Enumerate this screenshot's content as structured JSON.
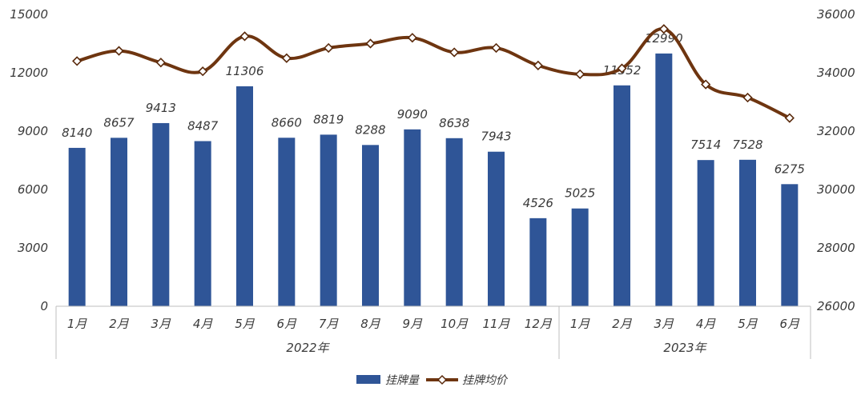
{
  "chart_data": {
    "type": "bar",
    "categories": [
      "1月",
      "2月",
      "3月",
      "4月",
      "5月",
      "6月",
      "7月",
      "8月",
      "9月",
      "10月",
      "11月",
      "12月",
      "1月",
      "2月",
      "3月",
      "4月",
      "5月",
      "6月"
    ],
    "category_groups": [
      {
        "label": "2022年",
        "count": 12
      },
      {
        "label": "2023年",
        "count": 6
      }
    ],
    "series": [
      {
        "name": "挂牌量",
        "type": "bar",
        "axis": "left",
        "color": "#2f5597",
        "values": [
          8140,
          8657,
          9413,
          8487,
          11306,
          8660,
          8819,
          8288,
          9090,
          8638,
          7943,
          4526,
          5025,
          11352,
          12990,
          7514,
          7528,
          6275
        ],
        "labels": [
          "8140",
          "8657",
          "9413",
          "8487",
          "11306",
          "8660",
          "8819",
          "8288",
          "9090",
          "8638",
          "7943",
          "4526",
          "5025",
          "11352",
          "12990",
          "7514",
          "7528",
          "6275"
        ]
      },
      {
        "name": "挂牌均价",
        "type": "line",
        "axis": "right",
        "color": "#6e3510",
        "values": [
          34400,
          34750,
          34350,
          34050,
          35250,
          34500,
          34850,
          35000,
          35200,
          34700,
          34850,
          34250,
          33950,
          34150,
          35500,
          33600,
          33150,
          32450
        ]
      }
    ],
    "y_left": {
      "min": 0,
      "max": 15000,
      "ticks": [
        "0",
        "3000",
        "6000",
        "9000",
        "12000",
        "15000"
      ]
    },
    "y_right": {
      "min": 26000,
      "max": 36000,
      "ticks": [
        "26000",
        "28000",
        "30000",
        "32000",
        "34000",
        "36000"
      ]
    },
    "legend_position": "bottom"
  }
}
